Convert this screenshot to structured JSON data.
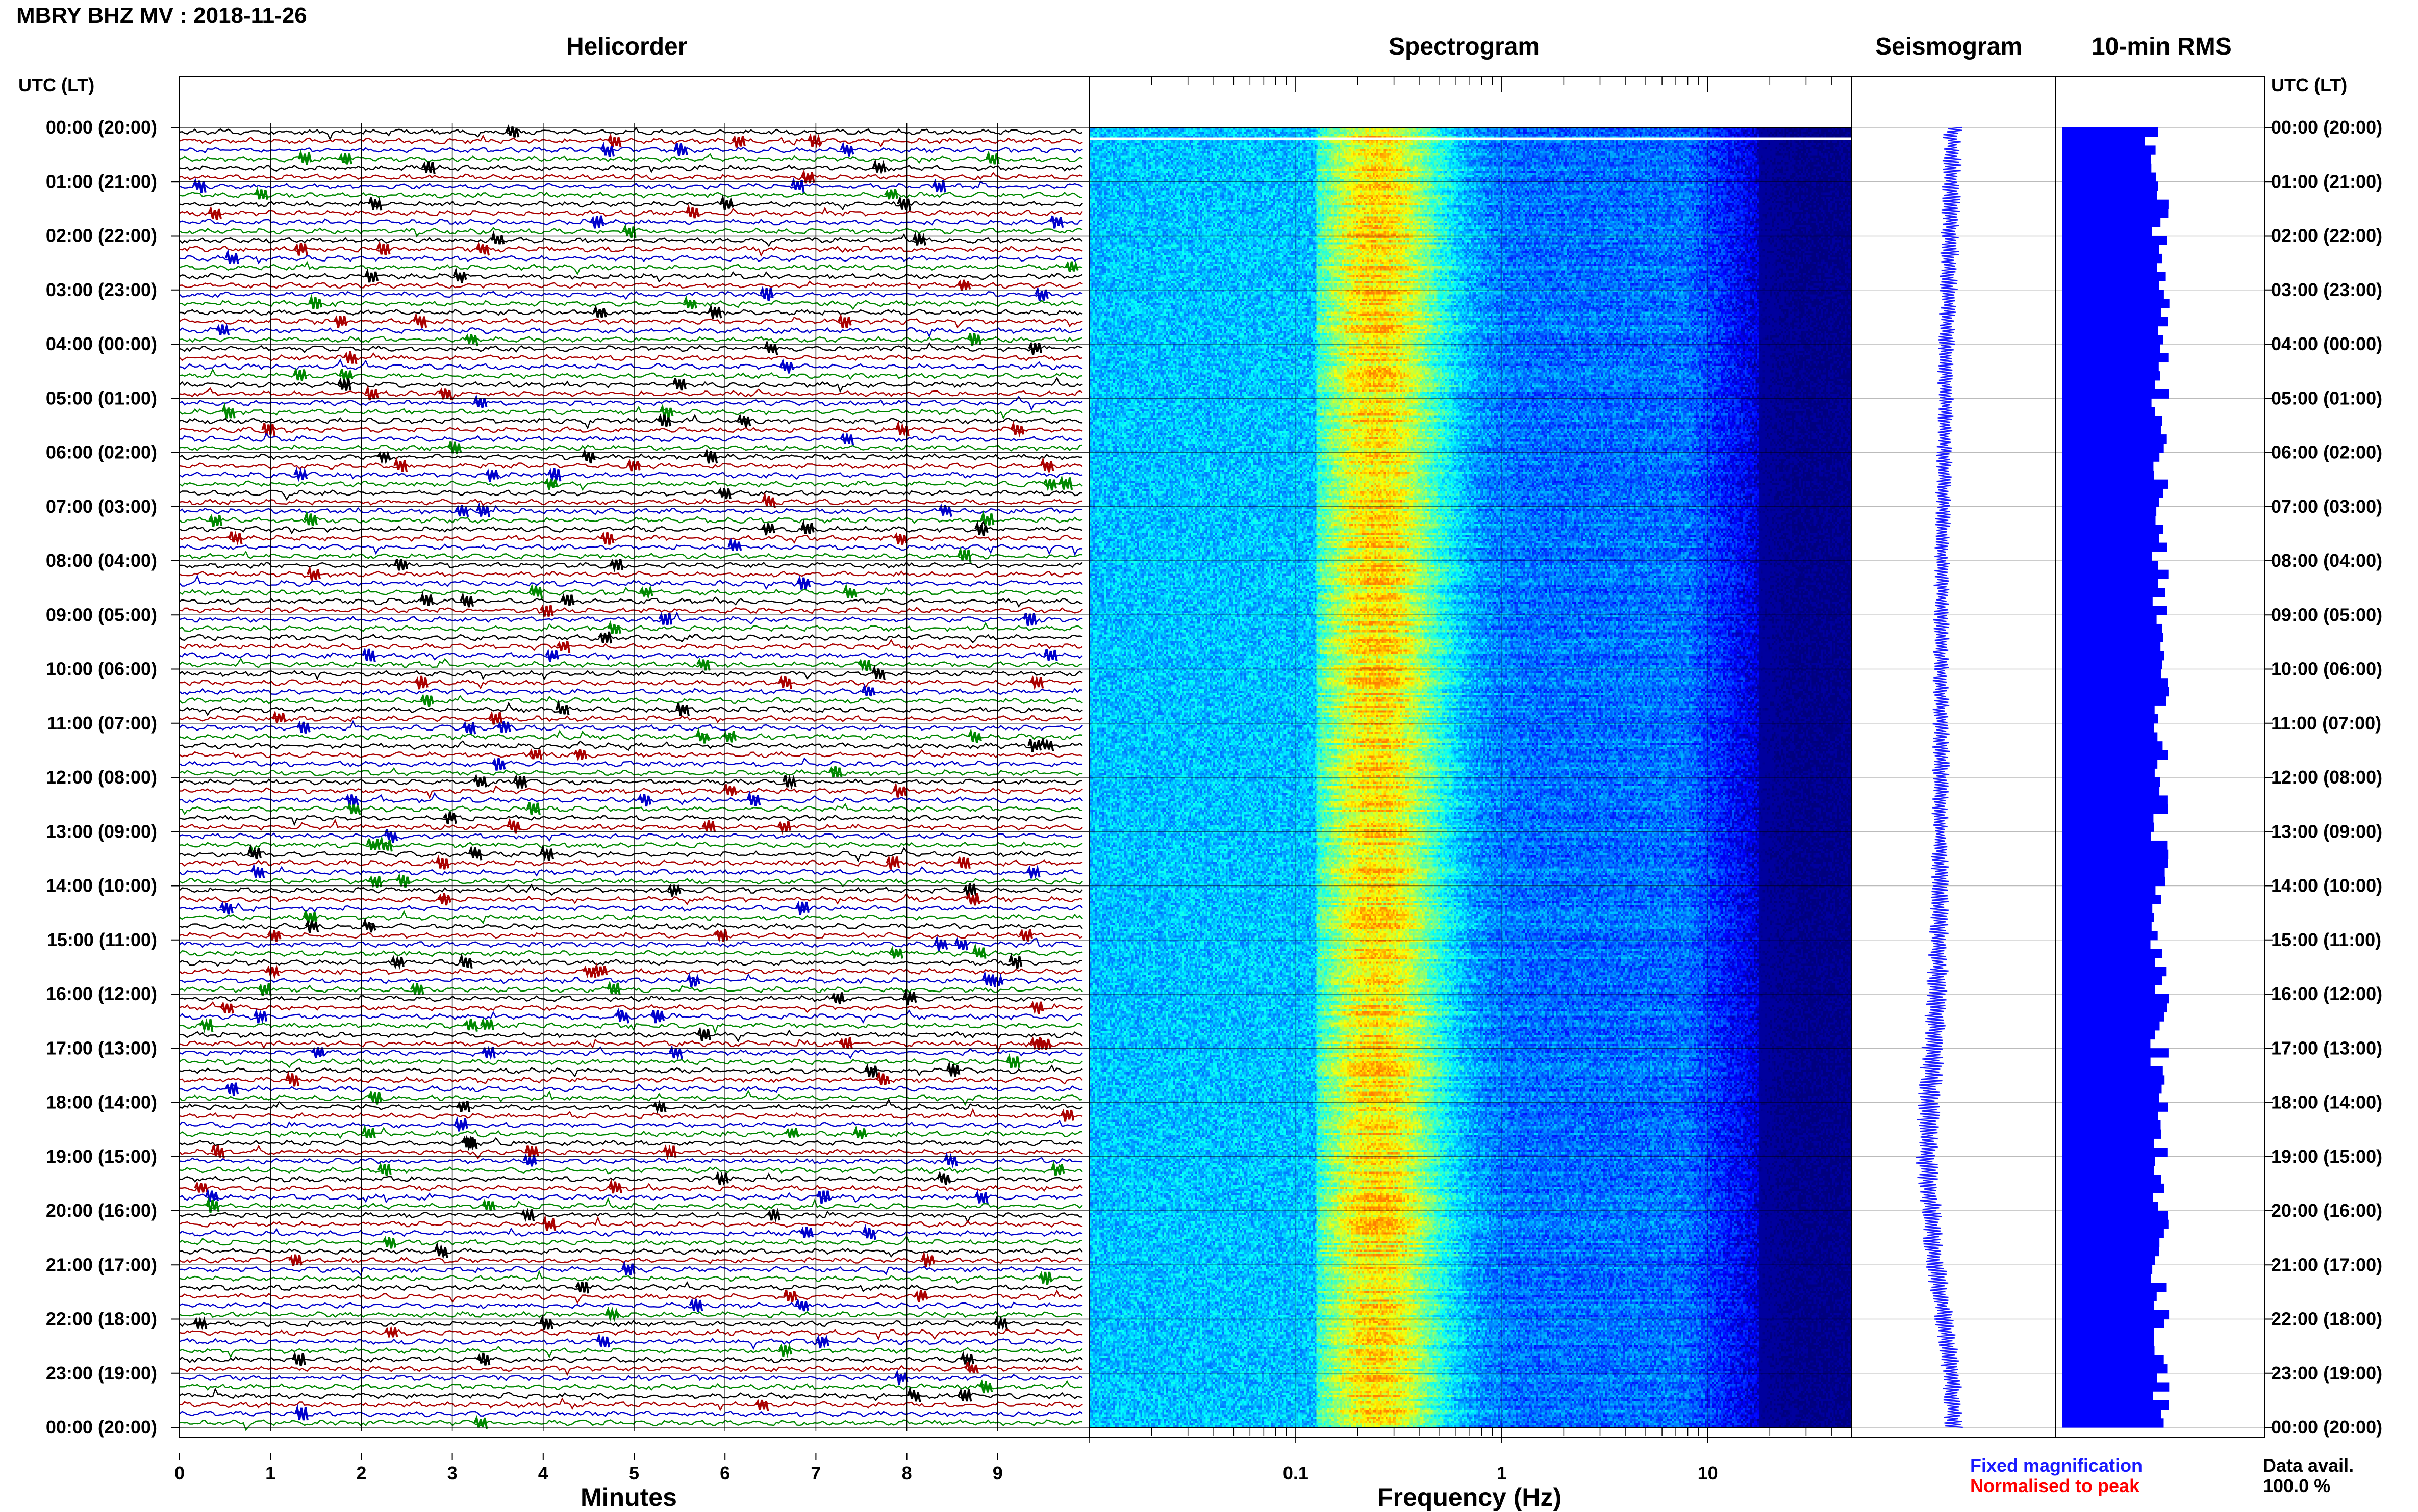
{
  "figure": {
    "title": "MBRY BHZ MV : 2018-11-26",
    "panel_titles": {
      "helicorder": "Helicorder",
      "spectrogram": "Spectrogram",
      "seismogram": "Seismogram",
      "rms": "10-min RMS"
    },
    "left_axis_title": "UTC (LT)",
    "right_axis_title": "UTC (LT)",
    "x_labels": {
      "helicorder": "Minutes",
      "spectrogram": "Frequency (Hz)"
    },
    "legend": {
      "fixed": "Fixed magnification",
      "normalised": "Normalised to peak",
      "fixed_color": "#1a1aff",
      "normalised_color": "#ff0000"
    },
    "data_avail": {
      "label": "Data avail.",
      "value": "100.0 %"
    }
  },
  "chart_data": [
    {
      "type": "line",
      "name": "helicorder",
      "title": "Helicorder",
      "xlabel": "Minutes",
      "x_ticks": [
        "0",
        "1",
        "2",
        "3",
        "4",
        "5",
        "6",
        "7",
        "8",
        "9"
      ],
      "xlim": [
        0,
        10
      ],
      "rows": 144,
      "row_minutes": 10,
      "trace_colors": [
        "#000000",
        "#aa0000",
        "#0000cc",
        "#008800"
      ],
      "time_labels": [
        "00:00 (20:00)",
        "01:00 (21:00)",
        "02:00 (22:00)",
        "03:00 (23:00)",
        "04:00 (00:00)",
        "05:00 (01:00)",
        "06:00 (02:00)",
        "07:00 (03:00)",
        "08:00 (04:00)",
        "09:00 (05:00)",
        "10:00 (06:00)",
        "11:00 (07:00)",
        "12:00 (08:00)",
        "13:00 (09:00)",
        "14:00 (10:00)",
        "15:00 (11:00)",
        "16:00 (12:00)",
        "17:00 (13:00)",
        "18:00 (14:00)",
        "19:00 (15:00)",
        "20:00 (16:00)",
        "21:00 (17:00)",
        "22:00 (18:00)",
        "23:00 (19:00)",
        "00:00 (20:00)"
      ]
    },
    {
      "type": "heatmap",
      "name": "spectrogram",
      "title": "Spectrogram",
      "xlabel": "Frequency (Hz)",
      "x_scale": "log",
      "xlim": [
        0.01,
        50
      ],
      "x_ticks": [
        {
          "value": 0.1,
          "label": "0.1"
        },
        {
          "value": 1,
          "label": "1"
        },
        {
          "value": 10,
          "label": "10"
        }
      ],
      "peak_frequency_hz": 0.25,
      "colormap": [
        "#00007f",
        "#0000ff",
        "#0080ff",
        "#00ffff",
        "#80ff80",
        "#ffff00",
        "#ff8000"
      ]
    },
    {
      "type": "line",
      "name": "seismogram",
      "title": "Seismogram",
      "hours": [
        0,
        2,
        4,
        6,
        8,
        10,
        12,
        14,
        16,
        18,
        19,
        20,
        21,
        22,
        23,
        24
      ],
      "center_offset": [
        0.15,
        0.13,
        0.1,
        0.08,
        0.06,
        0.05,
        0.05,
        0.04,
        0.02,
        -0.05,
        -0.07,
        -0.04,
        0.0,
        0.08,
        0.14,
        0.16
      ],
      "amplitude": [
        0.12,
        0.12,
        0.11,
        0.1,
        0.1,
        0.1,
        0.11,
        0.11,
        0.14,
        0.15,
        0.14,
        0.14,
        0.13,
        0.13,
        0.12,
        0.12
      ],
      "color": "#1a1aff"
    },
    {
      "type": "bar",
      "name": "rms",
      "title": "10-min RMS",
      "bins": 144,
      "mean_level": 0.83,
      "color": "#0000ff"
    }
  ]
}
